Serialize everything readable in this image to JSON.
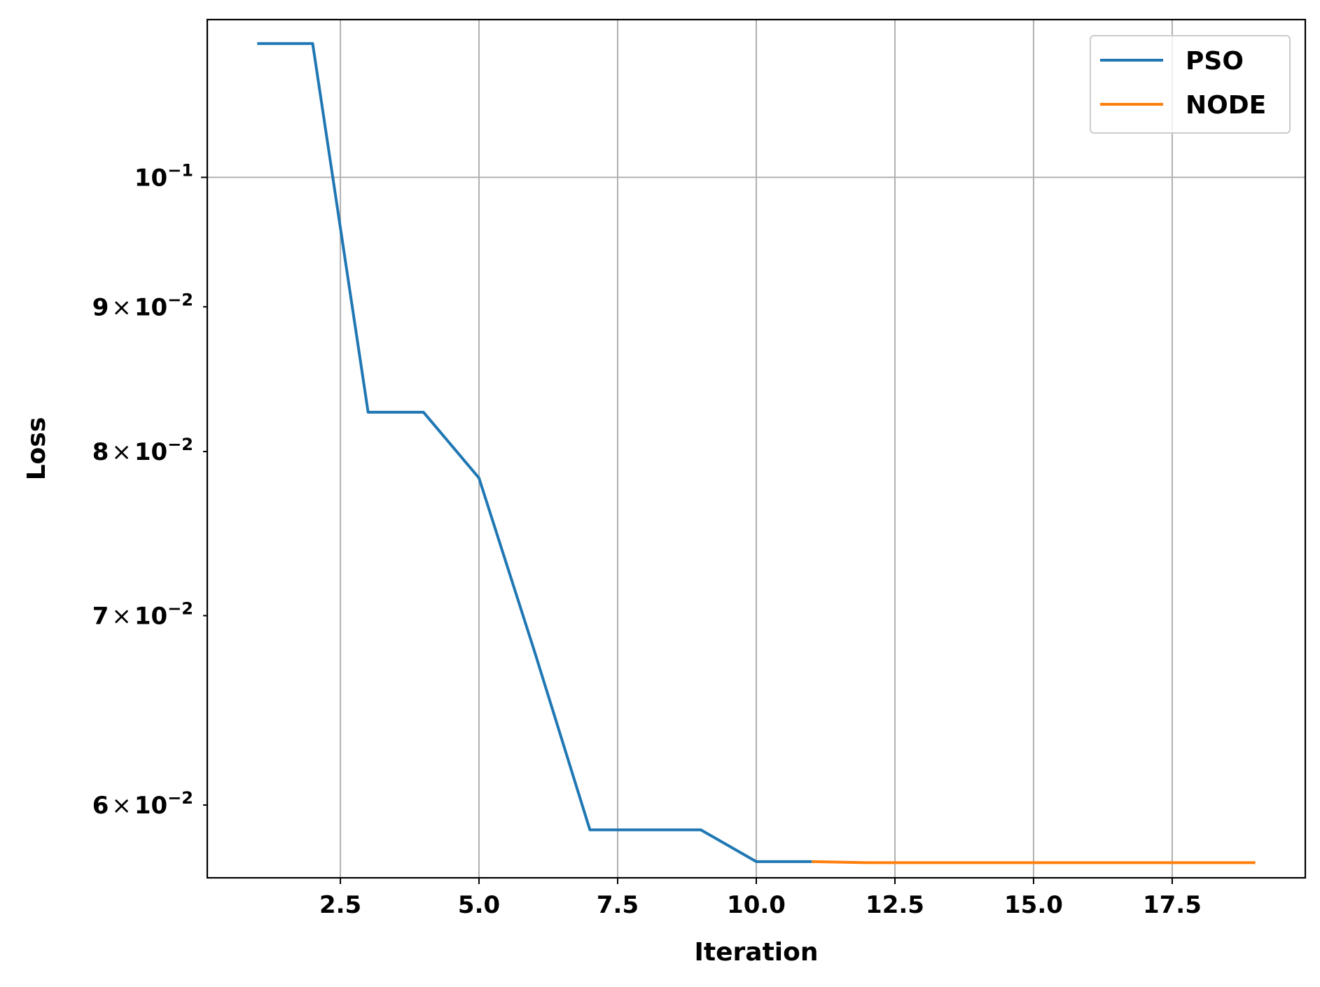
{
  "chart_data": {
    "type": "line",
    "xlabel": "Iteration",
    "ylabel": "Loss",
    "xlim": [
      0.1,
      19.9
    ],
    "ylim": [
      0.05655,
      0.1137
    ],
    "yscale": "log",
    "grid": true,
    "legend_position": "top-right",
    "x_ticks": [
      {
        "value": 2.5,
        "label": "2.5"
      },
      {
        "value": 5.0,
        "label": "5.0"
      },
      {
        "value": 7.5,
        "label": "7.5"
      },
      {
        "value": 10.0,
        "label": "10.0"
      },
      {
        "value": 12.5,
        "label": "12.5"
      },
      {
        "value": 15.0,
        "label": "15.0"
      },
      {
        "value": 17.5,
        "label": "17.5"
      }
    ],
    "y_ticks": [
      {
        "value": 0.06,
        "mantissa": "6",
        "times": "×",
        "base": "10",
        "exponent": "−2",
        "major": false
      },
      {
        "value": 0.07,
        "mantissa": "7",
        "times": "×",
        "base": "10",
        "exponent": "−2",
        "major": false
      },
      {
        "value": 0.08,
        "mantissa": "8",
        "times": "×",
        "base": "10",
        "exponent": "−2",
        "major": false
      },
      {
        "value": 0.09,
        "mantissa": "9",
        "times": "×",
        "base": "10",
        "exponent": "−2",
        "major": false
      },
      {
        "value": 0.1,
        "mantissa": "",
        "times": "",
        "base": "10",
        "exponent": "−1",
        "major": true
      }
    ],
    "series": [
      {
        "name": "PSO",
        "color": "#1f77b4",
        "x": [
          1,
          2,
          3,
          4,
          5,
          6,
          7,
          8,
          9,
          10,
          11
        ],
        "y": [
          0.1115,
          0.1115,
          0.0826,
          0.0826,
          0.0783,
          0.068,
          0.0588,
          0.0588,
          0.0588,
          0.0573,
          0.0573
        ]
      },
      {
        "name": "NODE",
        "color": "#ff7f0e",
        "x": [
          11,
          12,
          13,
          14,
          15,
          16,
          17,
          18,
          19
        ],
        "y": [
          0.0573,
          0.05725,
          0.05725,
          0.05725,
          0.05725,
          0.05725,
          0.05725,
          0.05725,
          0.05725
        ]
      }
    ]
  }
}
